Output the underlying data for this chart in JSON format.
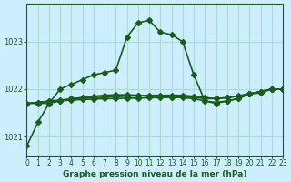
{
  "title": "Graphe pression niveau de la mer (hPa)",
  "background_color": "#cceeff",
  "grid_color": "#aaddcc",
  "line_color": "#1a5c1a",
  "xlim": [
    0,
    23
  ],
  "ylim": [
    1020.6,
    1023.8
  ],
  "yticks": [
    1021,
    1022,
    1023
  ],
  "xticks": [
    0,
    1,
    2,
    3,
    4,
    5,
    6,
    7,
    8,
    9,
    10,
    11,
    12,
    13,
    14,
    15,
    16,
    17,
    18,
    19,
    20,
    21,
    22,
    23
  ],
  "series": [
    {
      "x": [
        0,
        1,
        2,
        3,
        4,
        5,
        6,
        7,
        8,
        9,
        10,
        11,
        12,
        13,
        14,
        15,
        16,
        17,
        18,
        19,
        20,
        21,
        22,
        23
      ],
      "y": [
        1020.8,
        1021.3,
        1021.7,
        1022.0,
        1022.1,
        1022.2,
        1022.3,
        1022.35,
        1022.4,
        1023.1,
        1023.4,
        1023.45,
        1023.2,
        1023.15,
        1023.0,
        1022.3,
        1021.75,
        1021.7,
        1021.75,
        1021.8,
        1021.9,
        1021.95,
        1022.0,
        1022.0
      ],
      "marker": "D",
      "markersize": 3,
      "linewidth": 1.2
    },
    {
      "x": [
        0,
        1,
        2,
        3,
        4,
        5,
        6,
        7,
        8,
        9,
        10,
        11,
        12,
        13,
        14,
        15,
        16,
        17,
        18,
        19,
        20,
        21,
        22,
        23
      ],
      "y": [
        1021.7,
        1021.7,
        1021.7,
        1021.75,
        1021.8,
        1021.82,
        1021.85,
        1021.87,
        1021.88,
        1021.88,
        1021.87,
        1021.85,
        1021.84,
        1021.83,
        1021.82,
        1021.8,
        1021.75,
        1021.72,
        1021.75,
        1021.8,
        1021.9,
        1021.92,
        1022.0,
        1022.0
      ],
      "marker": "D",
      "markersize": 3,
      "linewidth": 1.2
    },
    {
      "x": [
        0,
        1,
        2,
        3,
        4,
        5,
        6,
        7,
        8,
        9,
        10,
        11,
        12,
        13,
        14,
        15,
        16,
        17,
        18,
        19,
        20,
        21,
        22,
        23
      ],
      "y": [
        1021.7,
        1021.72,
        1021.74,
        1021.75,
        1021.77,
        1021.78,
        1021.79,
        1021.8,
        1021.8,
        1021.81,
        1021.81,
        1021.82,
        1021.82,
        1021.83,
        1021.84,
        1021.83,
        1021.8,
        1021.8,
        1021.82,
        1021.85,
        1021.9,
        1021.95,
        1022.0,
        1022.0
      ],
      "marker": "D",
      "markersize": 3,
      "linewidth": 1.2
    },
    {
      "x": [
        0,
        1,
        2,
        3,
        4,
        5,
        6,
        7,
        8,
        9,
        10,
        11,
        12,
        13,
        14,
        15,
        16,
        17,
        18,
        19,
        20,
        21,
        22,
        23
      ],
      "y": [
        1021.7,
        1021.72,
        1021.75,
        1021.77,
        1021.79,
        1021.8,
        1021.82,
        1021.83,
        1021.84,
        1021.85,
        1021.86,
        1021.87,
        1021.87,
        1021.87,
        1021.87,
        1021.85,
        1021.82,
        1021.8,
        1021.82,
        1021.86,
        1021.9,
        1021.95,
        1022.0,
        1022.0
      ],
      "marker": "D",
      "markersize": 3,
      "linewidth": 1.2
    }
  ]
}
